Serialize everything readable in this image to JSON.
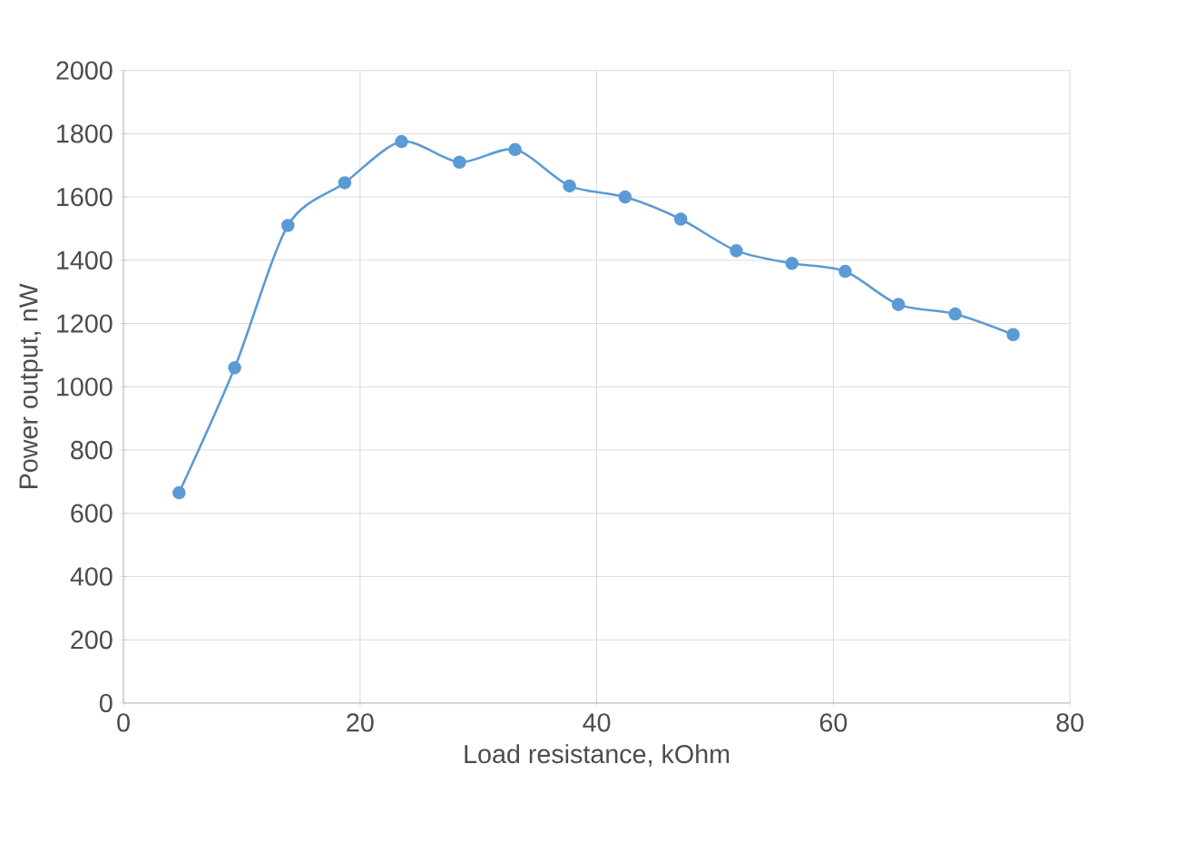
{
  "chart_data": {
    "type": "line",
    "xlabel": "Load resistance, kOhm",
    "ylabel": "Power output, nW",
    "series": [
      {
        "color": "#5b9bd5",
        "x": [
          4.7,
          9.4,
          13.9,
          18.7,
          23.5,
          28.4,
          33.1,
          37.7,
          42.4,
          47.1,
          51.8,
          56.5,
          61.0,
          65.5,
          70.3,
          75.2
        ],
        "values": [
          665,
          1060,
          1510,
          1645,
          1775,
          1710,
          1750,
          1635,
          1600,
          1530,
          1430,
          1390,
          1365,
          1260,
          1230,
          1165
        ]
      }
    ],
    "xlim": [
      0,
      80
    ],
    "ylim": [
      0,
      2000
    ],
    "xticks": [
      0,
      20,
      40,
      60,
      80
    ],
    "yticks": [
      0,
      200,
      400,
      600,
      800,
      1000,
      1200,
      1400,
      1600,
      1800,
      2000
    ],
    "grid": true,
    "marker": "circle",
    "line_style": "solid"
  }
}
